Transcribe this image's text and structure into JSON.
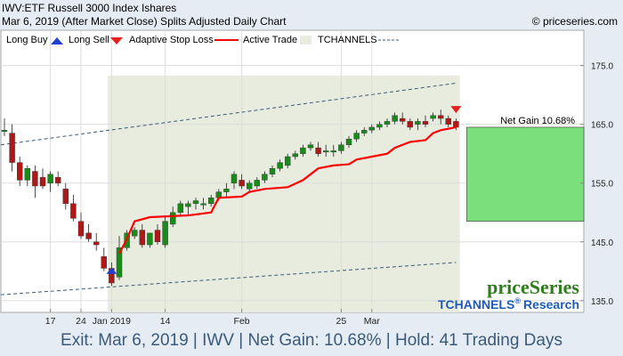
{
  "header": {
    "title": "IWV:ETF Russell 3000 Index Ishares",
    "subtitle": "Mar 6, 2019 (After Market Close)  Splits Adjusted Daily Chart",
    "copyright": "© priceseries.com"
  },
  "legend": {
    "long_buy": "Long Buy",
    "long_sell": "Long Sell",
    "adaptive_stop": "Adaptive Stop Loss",
    "active_trade": "Active Trade",
    "tchannels": "TCHANNELS"
  },
  "gain_label": "Net Gain 10.68%",
  "brand": {
    "price_series": "priceSeries",
    "tchannels": "TCHANNELS",
    "reg": "®",
    "research": "Research"
  },
  "footer": "Exit: Mar 6, 2019 | IWV | Net Gain: 10.68% | Hold: 41 Trading Days",
  "colors": {
    "up": "#1a8a1a",
    "down": "#b01818",
    "stop": "#ff0000",
    "active_trade": "#e8ecdf",
    "gain_box": "#7be07b",
    "buy_arrow": "#1f3fd0",
    "sell_arrow": "#e82020",
    "channel": "#3a5a78"
  },
  "chart_data": {
    "type": "candlestick",
    "ylim": [
      133,
      181
    ],
    "yticks": [
      135,
      145,
      155,
      165,
      175
    ],
    "xticks": [
      {
        "label": "17",
        "i": 6
      },
      {
        "label": "24",
        "i": 10
      },
      {
        "label": "Jan 2019",
        "i": 14
      },
      {
        "label": "14",
        "i": 21
      },
      {
        "label": "Feb",
        "i": 31
      },
      {
        "label": "25",
        "i": 44
      },
      {
        "label": "Mar",
        "i": 48
      }
    ],
    "candles": [
      {
        "o": 164,
        "h": 166,
        "l": 163,
        "c": 164
      },
      {
        "o": 163.5,
        "h": 165,
        "l": 157,
        "c": 158.5
      },
      {
        "o": 158.5,
        "h": 159.5,
        "l": 154.5,
        "c": 155.5
      },
      {
        "o": 155.5,
        "h": 158,
        "l": 154.5,
        "c": 157.5
      },
      {
        "o": 157,
        "h": 158,
        "l": 152.5,
        "c": 154.5
      },
      {
        "o": 156,
        "h": 157.5,
        "l": 154,
        "c": 154.5
      },
      {
        "o": 155,
        "h": 157,
        "l": 153.5,
        "c": 156.5
      },
      {
        "o": 156,
        "h": 157,
        "l": 154.5,
        "c": 155
      },
      {
        "o": 154,
        "h": 155,
        "l": 150.5,
        "c": 151.5
      },
      {
        "o": 151.5,
        "h": 153,
        "l": 148.5,
        "c": 149
      },
      {
        "o": 148.5,
        "h": 150,
        "l": 145.5,
        "c": 146
      },
      {
        "o": 146.5,
        "h": 148,
        "l": 145,
        "c": 145.5
      },
      {
        "o": 145,
        "h": 146.5,
        "l": 143.5,
        "c": 144.5
      },
      {
        "o": 142.5,
        "h": 144,
        "l": 140,
        "c": 140.5
      },
      {
        "o": 140.5,
        "h": 141.5,
        "l": 137.5,
        "c": 138
      },
      {
        "o": 139,
        "h": 146,
        "l": 138.5,
        "c": 144
      },
      {
        "o": 144,
        "h": 147,
        "l": 143.5,
        "c": 146.5
      },
      {
        "o": 146,
        "h": 147.5,
        "l": 145.5,
        "c": 147
      },
      {
        "o": 147,
        "h": 148,
        "l": 144,
        "c": 144.5
      },
      {
        "o": 144.5,
        "h": 146.5,
        "l": 144,
        "c": 146.5
      },
      {
        "o": 147,
        "h": 148,
        "l": 144.5,
        "c": 145
      },
      {
        "o": 144.5,
        "h": 149.5,
        "l": 144,
        "c": 148.5
      },
      {
        "o": 148,
        "h": 151,
        "l": 147.5,
        "c": 150
      },
      {
        "o": 150,
        "h": 152,
        "l": 149.5,
        "c": 151.5
      },
      {
        "o": 151,
        "h": 152,
        "l": 149.5,
        "c": 151.5
      },
      {
        "o": 151.5,
        "h": 152.5,
        "l": 150.5,
        "c": 152
      },
      {
        "o": 151.5,
        "h": 152.5,
        "l": 150.5,
        "c": 151.5
      },
      {
        "o": 151.5,
        "h": 153,
        "l": 151,
        "c": 152.5
      },
      {
        "o": 152.5,
        "h": 154,
        "l": 152,
        "c": 153.5
      },
      {
        "o": 153.5,
        "h": 155,
        "l": 152.5,
        "c": 154
      },
      {
        "o": 155,
        "h": 157,
        "l": 154,
        "c": 156.5
      },
      {
        "o": 155.5,
        "h": 156.5,
        "l": 154,
        "c": 154.5
      },
      {
        "o": 154,
        "h": 155.5,
        "l": 153.5,
        "c": 155
      },
      {
        "o": 154.5,
        "h": 156,
        "l": 154,
        "c": 155.5
      },
      {
        "o": 155.5,
        "h": 157,
        "l": 155,
        "c": 156.5
      },
      {
        "o": 156.5,
        "h": 158,
        "l": 156,
        "c": 157.5
      },
      {
        "o": 157.5,
        "h": 159,
        "l": 157,
        "c": 158.5
      },
      {
        "o": 158,
        "h": 160,
        "l": 157.5,
        "c": 159.5
      },
      {
        "o": 159.5,
        "h": 160.5,
        "l": 159,
        "c": 160
      },
      {
        "o": 160,
        "h": 161.5,
        "l": 159.5,
        "c": 161
      },
      {
        "o": 161,
        "h": 162,
        "l": 160.5,
        "c": 161.5
      },
      {
        "o": 161,
        "h": 162,
        "l": 159.5,
        "c": 160
      },
      {
        "o": 160.5,
        "h": 161.5,
        "l": 159.5,
        "c": 160.5
      },
      {
        "o": 160.5,
        "h": 161.5,
        "l": 159.5,
        "c": 160.5
      },
      {
        "o": 160.5,
        "h": 162,
        "l": 160,
        "c": 161.5
      },
      {
        "o": 161.5,
        "h": 163,
        "l": 161,
        "c": 162.5
      },
      {
        "o": 162.5,
        "h": 164,
        "l": 162,
        "c": 163.5
      },
      {
        "o": 163.5,
        "h": 164.5,
        "l": 163,
        "c": 164
      },
      {
        "o": 164,
        "h": 165,
        "l": 163.5,
        "c": 164.5
      },
      {
        "o": 164.5,
        "h": 165.5,
        "l": 164,
        "c": 165
      },
      {
        "o": 165,
        "h": 166,
        "l": 164.5,
        "c": 165.5
      },
      {
        "o": 165.5,
        "h": 167,
        "l": 165,
        "c": 166.5
      },
      {
        "o": 166,
        "h": 167,
        "l": 165,
        "c": 165.5
      },
      {
        "o": 165.5,
        "h": 166,
        "l": 164,
        "c": 164.5
      },
      {
        "o": 165,
        "h": 166,
        "l": 164,
        "c": 165.5
      },
      {
        "o": 165.5,
        "h": 166.5,
        "l": 164.5,
        "c": 165
      },
      {
        "o": 166,
        "h": 167,
        "l": 165.5,
        "c": 166.5
      },
      {
        "o": 166.5,
        "h": 167.5,
        "l": 165,
        "c": 166
      },
      {
        "o": 166,
        "h": 166.5,
        "l": 164.5,
        "c": 165
      },
      {
        "o": 165.5,
        "h": 166,
        "l": 164,
        "c": 164.5
      }
    ],
    "active_trade": {
      "start": 14,
      "end": 59
    },
    "stop_loss": [
      {
        "i": 15,
        "v": 143
      },
      {
        "i": 16,
        "v": 145.5
      },
      {
        "i": 17,
        "v": 148.5
      },
      {
        "i": 19,
        "v": 149.2
      },
      {
        "i": 24,
        "v": 149.5
      },
      {
        "i": 27,
        "v": 150
      },
      {
        "i": 28,
        "v": 152.5
      },
      {
        "i": 31,
        "v": 152.7
      },
      {
        "i": 32,
        "v": 153.5
      },
      {
        "i": 34,
        "v": 154
      },
      {
        "i": 37,
        "v": 154.3
      },
      {
        "i": 39,
        "v": 155.5
      },
      {
        "i": 41,
        "v": 157.5
      },
      {
        "i": 43,
        "v": 158
      },
      {
        "i": 45,
        "v": 158.2
      },
      {
        "i": 46,
        "v": 159
      },
      {
        "i": 48,
        "v": 159.5
      },
      {
        "i": 50,
        "v": 160
      },
      {
        "i": 51,
        "v": 161
      },
      {
        "i": 53,
        "v": 162
      },
      {
        "i": 55,
        "v": 162.3
      },
      {
        "i": 56,
        "v": 163.5
      },
      {
        "i": 57,
        "v": 164
      },
      {
        "i": 59,
        "v": 164.5
      }
    ],
    "channel_top": [
      {
        "i": -2,
        "v": 161.5
      },
      {
        "i": 59,
        "v": 172
      }
    ],
    "channel_bottom": [
      {
        "i": -2,
        "v": 136
      },
      {
        "i": 59,
        "v": 141.5
      }
    ],
    "buy_signal": {
      "i": 14,
      "v": 140
    },
    "sell_signal": {
      "i": 59,
      "v": 167.5
    },
    "gain_box": {
      "entry": 148.5,
      "exit": 164.5
    }
  }
}
